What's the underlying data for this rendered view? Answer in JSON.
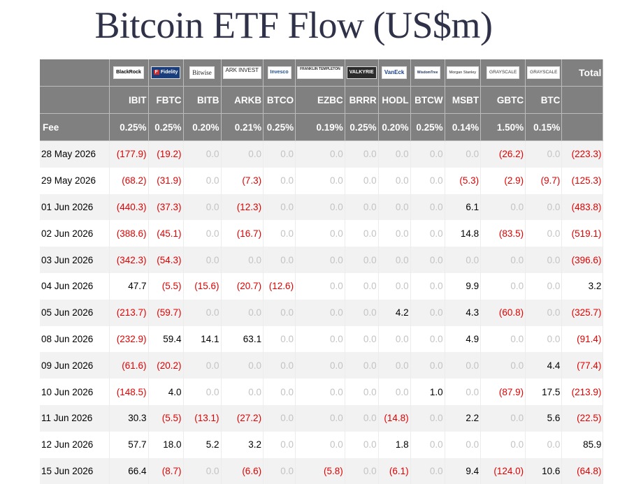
{
  "title": "Bitcoin ETF Flow (US$m)",
  "colors": {
    "header_bg": "#808080",
    "negative": "#e00000",
    "positive": "#000000",
    "zero": "#c3c3c3",
    "stripe": "#f2f2f2",
    "title": "#2e3148"
  },
  "header": {
    "total_label": "Total",
    "fee_label": "Fee"
  },
  "funds": [
    {
      "issuer": "BlackRock",
      "ticker": "IBIT",
      "fee": "0.25%"
    },
    {
      "issuer": "Fidelity",
      "ticker": "FBTC",
      "fee": "0.25%"
    },
    {
      "issuer": "Bitwise",
      "ticker": "BITB",
      "fee": "0.20%"
    },
    {
      "issuer": "ARK INVEST",
      "ticker": "ARKB",
      "fee": "0.21%"
    },
    {
      "issuer": "Invesco",
      "ticker": "BTCO",
      "fee": "0.25%"
    },
    {
      "issuer": "FRANKLIN TEMPLETON",
      "ticker": "EZBC",
      "fee": "0.19%"
    },
    {
      "issuer": "VALKYRIE",
      "ticker": "BRRR",
      "fee": "0.25%"
    },
    {
      "issuer": "VanEck",
      "ticker": "HODL",
      "fee": "0.20%"
    },
    {
      "issuer": "WisdomTree",
      "ticker": "BTCW",
      "fee": "0.25%"
    },
    {
      "issuer": "Morgan Stanley",
      "ticker": "MSBT",
      "fee": "0.14%"
    },
    {
      "issuer": "GRAYSCALE",
      "ticker": "GBTC",
      "fee": "1.50%"
    },
    {
      "issuer": "GRAYSCALE",
      "ticker": "BTC",
      "fee": "0.15%"
    }
  ],
  "chart_data": {
    "type": "table",
    "title": "Bitcoin ETF Flow (US$m)",
    "columns": [
      "IBIT",
      "FBTC",
      "BITB",
      "ARKB",
      "BTCO",
      "EZBC",
      "BRRR",
      "HODL",
      "BTCW",
      "MSBT",
      "GBTC",
      "BTC",
      "Total"
    ],
    "rows": [
      {
        "date": "28 May 2026",
        "cells": [
          "(177.9)",
          "(19.2)",
          "0.0",
          "0.0",
          "0.0",
          "0.0",
          "0.0",
          "0.0",
          "0.0",
          "0.0",
          "(26.2)",
          "0.0",
          "(223.3)"
        ]
      },
      {
        "date": "29 May 2026",
        "cells": [
          "(68.2)",
          "(31.9)",
          "0.0",
          "(7.3)",
          "0.0",
          "0.0",
          "0.0",
          "0.0",
          "0.0",
          "(5.3)",
          "(2.9)",
          "(9.7)",
          "(125.3)"
        ]
      },
      {
        "date": "01 Jun 2026",
        "cells": [
          "(440.3)",
          "(37.3)",
          "0.0",
          "(12.3)",
          "0.0",
          "0.0",
          "0.0",
          "0.0",
          "0.0",
          "6.1",
          "0.0",
          "0.0",
          "(483.8)"
        ]
      },
      {
        "date": "02 Jun 2026",
        "cells": [
          "(388.6)",
          "(45.1)",
          "0.0",
          "(16.7)",
          "0.0",
          "0.0",
          "0.0",
          "0.0",
          "0.0",
          "14.8",
          "(83.5)",
          "0.0",
          "(519.1)"
        ]
      },
      {
        "date": "03 Jun 2026",
        "cells": [
          "(342.3)",
          "(54.3)",
          "0.0",
          "0.0",
          "0.0",
          "0.0",
          "0.0",
          "0.0",
          "0.0",
          "0.0",
          "0.0",
          "0.0",
          "(396.6)"
        ]
      },
      {
        "date": "04 Jun 2026",
        "cells": [
          "47.7",
          "(5.5)",
          "(15.6)",
          "(20.7)",
          "(12.6)",
          "0.0",
          "0.0",
          "0.0",
          "0.0",
          "9.9",
          "0.0",
          "0.0",
          "3.2"
        ]
      },
      {
        "date": "05 Jun 2026",
        "cells": [
          "(213.7)",
          "(59.7)",
          "0.0",
          "0.0",
          "0.0",
          "0.0",
          "0.0",
          "4.2",
          "0.0",
          "4.3",
          "(60.8)",
          "0.0",
          "(325.7)"
        ]
      },
      {
        "date": "08 Jun 2026",
        "cells": [
          "(232.9)",
          "59.4",
          "14.1",
          "63.1",
          "0.0",
          "0.0",
          "0.0",
          "0.0",
          "0.0",
          "4.9",
          "0.0",
          "0.0",
          "(91.4)"
        ]
      },
      {
        "date": "09 Jun 2026",
        "cells": [
          "(61.6)",
          "(20.2)",
          "0.0",
          "0.0",
          "0.0",
          "0.0",
          "0.0",
          "0.0",
          "0.0",
          "0.0",
          "0.0",
          "4.4",
          "(77.4)"
        ]
      },
      {
        "date": "10 Jun 2026",
        "cells": [
          "(148.5)",
          "4.0",
          "0.0",
          "0.0",
          "0.0",
          "0.0",
          "0.0",
          "0.0",
          "1.0",
          "0.0",
          "(87.9)",
          "17.5",
          "(213.9)"
        ]
      },
      {
        "date": "11 Jun 2026",
        "cells": [
          "30.3",
          "(5.5)",
          "(13.1)",
          "(27.2)",
          "0.0",
          "0.0",
          "0.0",
          "(14.8)",
          "0.0",
          "2.2",
          "0.0",
          "5.6",
          "(22.5)"
        ]
      },
      {
        "date": "12 Jun 2026",
        "cells": [
          "57.7",
          "18.0",
          "5.2",
          "3.2",
          "0.0",
          "0.0",
          "0.0",
          "1.8",
          "0.0",
          "0.0",
          "0.0",
          "0.0",
          "85.9"
        ]
      },
      {
        "date": "15 Jun 2026",
        "cells": [
          "66.4",
          "(8.7)",
          "0.0",
          "(6.6)",
          "0.0",
          "(5.8)",
          "0.0",
          "(6.1)",
          "0.0",
          "9.4",
          "(124.0)",
          "10.6",
          "(64.8)"
        ]
      }
    ]
  }
}
